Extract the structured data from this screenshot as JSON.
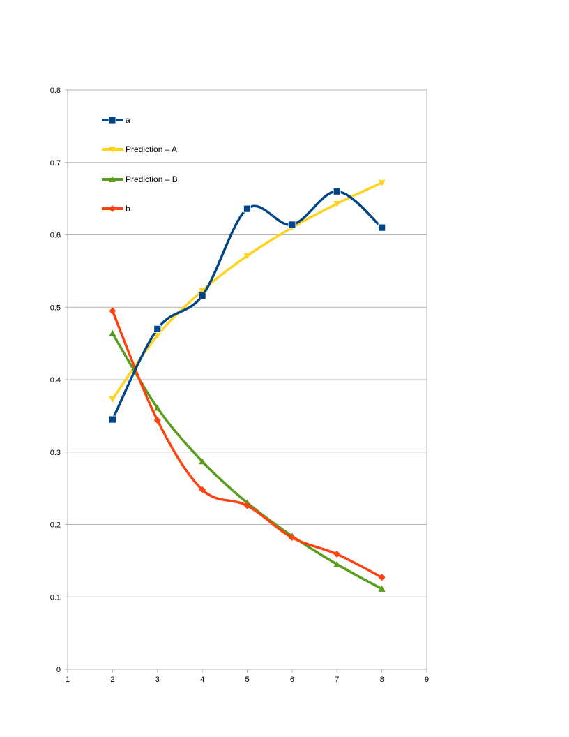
{
  "chart_data": {
    "type": "line",
    "title": "",
    "xlabel": "",
    "ylabel": "",
    "xlim": [
      1,
      9
    ],
    "ylim": [
      0,
      0.8
    ],
    "x_ticks": [
      1,
      2,
      3,
      4,
      5,
      6,
      7,
      8,
      9
    ],
    "y_ticks": [
      0,
      0.1,
      0.2,
      0.3,
      0.4,
      0.5,
      0.6,
      0.7,
      0.8
    ],
    "y_tick_labels": [
      "0",
      "0.1",
      "0.2",
      "0.3",
      "0.4",
      "0.5",
      "0.6",
      "0.7",
      "0.8"
    ],
    "grid": "horizontal",
    "legend_position": "top-left inside",
    "smoothed": true,
    "series": [
      {
        "name": "a",
        "color": "#004586",
        "marker": "square",
        "x": [
          2,
          3,
          4,
          5,
          6,
          7,
          8
        ],
        "y": [
          0.345,
          0.47,
          0.516,
          0.636,
          0.614,
          0.66,
          0.61
        ]
      },
      {
        "name": "Prediction – A",
        "color": "#ffd320",
        "marker": "triangle-down",
        "x": [
          2,
          3,
          4,
          5,
          6,
          7,
          8
        ],
        "y": [
          0.373,
          0.461,
          0.523,
          0.571,
          0.61,
          0.643,
          0.672
        ]
      },
      {
        "name": "Prediction – B",
        "color": "#579d1c",
        "marker": "triangle-up",
        "x": [
          2,
          3,
          4,
          5,
          6,
          7,
          8
        ],
        "y": [
          0.464,
          0.361,
          0.287,
          0.23,
          0.184,
          0.145,
          0.111
        ]
      },
      {
        "name": "b",
        "color": "#ff420e",
        "marker": "diamond",
        "x": [
          2,
          3,
          4,
          5,
          6,
          7,
          8
        ],
        "y": [
          0.495,
          0.344,
          0.248,
          0.226,
          0.182,
          0.159,
          0.127
        ]
      }
    ]
  }
}
